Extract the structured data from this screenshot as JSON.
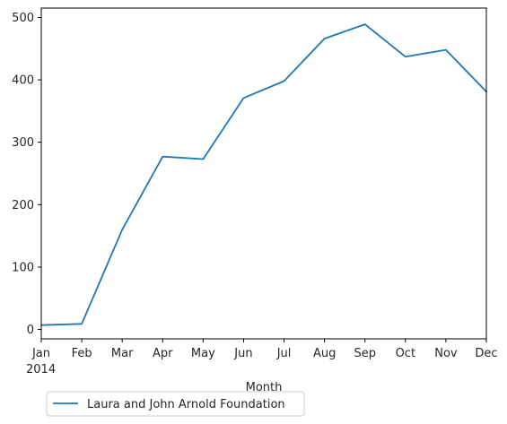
{
  "chart_data": {
    "type": "line",
    "title": "",
    "xlabel": "Month",
    "ylabel": "",
    "x": [
      "Jan",
      "Feb",
      "Mar",
      "Apr",
      "May",
      "Jun",
      "Jul",
      "Aug",
      "Sep",
      "Oct",
      "Nov",
      "Dec"
    ],
    "x_year_label": "2014",
    "ylim": [
      -15,
      515
    ],
    "yticks": [
      0,
      100,
      200,
      300,
      400,
      500
    ],
    "grid": false,
    "legend_position": "below-left",
    "series": [
      {
        "name": "Laura and John Arnold Foundation",
        "color": "#1f77b4",
        "values": [
          7,
          9,
          160,
          277,
          273,
          371,
          398,
          466,
          489,
          437,
          448,
          381
        ]
      }
    ]
  }
}
